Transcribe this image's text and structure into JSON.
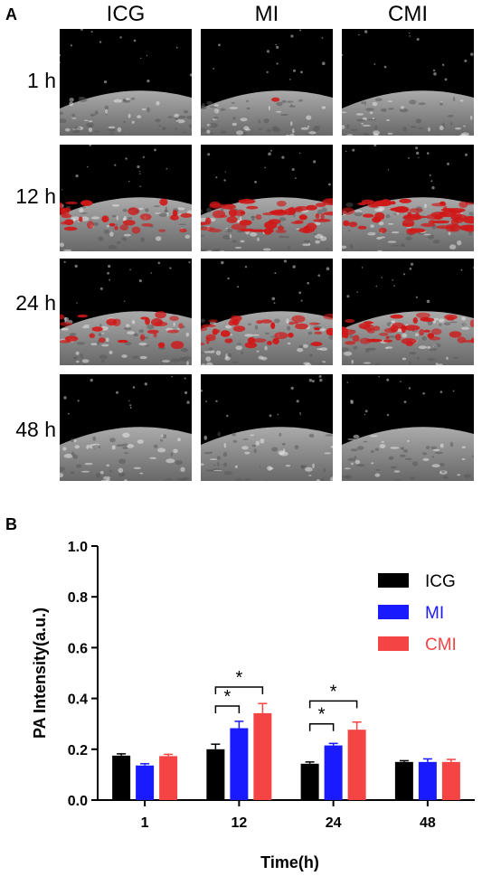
{
  "panel_a": {
    "label": "A",
    "columns": [
      "ICG",
      "MI",
      "CMI"
    ],
    "rows": [
      "1 h",
      "12 h",
      "24 h",
      "48 h"
    ],
    "signal_level": [
      [
        0.0,
        0.02,
        0.0
      ],
      [
        0.45,
        0.8,
        0.95
      ],
      [
        0.4,
        0.6,
        0.75
      ],
      [
        0.0,
        0.0,
        0.0
      ]
    ],
    "colors": {
      "tissue": "#c9c9c9",
      "signal": "#d01818",
      "background": "#000000"
    }
  },
  "chart_data": {
    "panel_label": "B",
    "type": "bar",
    "categories": [
      "1",
      "12",
      "24",
      "48"
    ],
    "series": [
      {
        "name": "ICG",
        "color": "#000000",
        "values": [
          0.175,
          0.2,
          0.143,
          0.15
        ],
        "errors": [
          0.007,
          0.02,
          0.007,
          0.005
        ]
      },
      {
        "name": "MI",
        "color": "#1a1aff",
        "values": [
          0.136,
          0.283,
          0.215,
          0.15
        ],
        "errors": [
          0.007,
          0.027,
          0.008,
          0.012
        ]
      },
      {
        "name": "CMI",
        "color": "#f44444",
        "values": [
          0.173,
          0.342,
          0.277,
          0.15
        ],
        "errors": [
          0.007,
          0.038,
          0.03,
          0.01
        ]
      }
    ],
    "ylim": [
      0,
      1.0
    ],
    "yticks": [
      "0.0",
      "0.2",
      "0.4",
      "0.6",
      "0.8",
      "1.0"
    ],
    "xlabel": "Time(h)",
    "ylabel": "PA Intensity(a.u.)",
    "legend": "top-right",
    "significance": [
      {
        "category": 1,
        "from": 0,
        "to": 1,
        "level": 0.37,
        "text": "*"
      },
      {
        "category": 1,
        "from": 0,
        "to": 2,
        "level": 0.445,
        "text": "*"
      },
      {
        "category": 2,
        "from": 0,
        "to": 1,
        "level": 0.3,
        "text": "*"
      },
      {
        "category": 2,
        "from": 0,
        "to": 2,
        "level": 0.39,
        "text": "*"
      }
    ]
  }
}
